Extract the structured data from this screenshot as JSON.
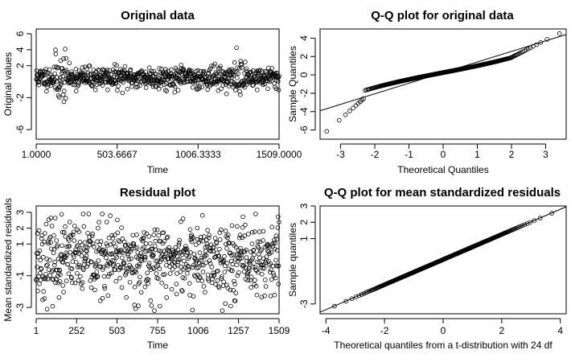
{
  "chart_data": [
    {
      "id": "p1",
      "type": "scatter",
      "title": "Original data",
      "xlabel": "Time",
      "ylabel": "Original values",
      "xlim": [
        1,
        1509
      ],
      "ylim": [
        -7.2,
        6.6
      ],
      "x_ticks": [
        1,
        503.6667,
        1006.3333,
        1509
      ],
      "x_tick_labels": [
        "1.0000",
        "503.6667",
        "1006.3333",
        "1509.0000"
      ],
      "y_ticks": [
        -6,
        -2,
        2,
        4,
        6
      ],
      "y_tick_labels": [
        "-6",
        "-2",
        "2",
        "4",
        "6"
      ],
      "series": [
        {
          "name": "original values",
          "n": 1509,
          "description": "time series centered near 0.5 with spread about ±1.5, bursts of larger values near t≈150 and t≈1250"
        }
      ]
    },
    {
      "id": "p2",
      "type": "scatter",
      "title": "Q-Q plot for original data",
      "xlabel": "Theoretical Quantiles",
      "ylabel": "Sample Quantiles",
      "xlim": [
        -3.6,
        3.6
      ],
      "ylim": [
        -7.0,
        5.0
      ],
      "x_ticks": [
        -3,
        -2,
        -1,
        0,
        1,
        2,
        3
      ],
      "x_tick_labels": [
        "-3",
        "-2",
        "-1",
        "0",
        "1",
        "2",
        "3"
      ],
      "y_ticks": [
        -6,
        -4,
        -2,
        0,
        2,
        4
      ],
      "y_tick_labels": [
        "-6",
        "-4",
        "-2",
        "0",
        "2",
        "4"
      ],
      "reference_line": {
        "x": [
          -3.6,
          3.6
        ],
        "y": [
          -3.9,
          4.4
        ]
      },
      "series": [
        {
          "name": "sample vs theoretical quantiles",
          "n": 1509,
          "description": "S-shaped curve with heavy tails, min about -6.6, max about 4.5"
        }
      ]
    },
    {
      "id": "p3",
      "type": "scatter",
      "title": "Residual plot",
      "xlabel": "Time",
      "ylabel": "Mean standardized residuals",
      "xlim": [
        1,
        1509
      ],
      "ylim": [
        -3.4,
        3.4
      ],
      "x_ticks": [
        1,
        252,
        503,
        755,
        1006,
        1257,
        1509
      ],
      "x_tick_labels": [
        "1",
        "252",
        "503",
        "755",
        "1006",
        "1257",
        "1509"
      ],
      "y_ticks": [
        -3,
        -1,
        1,
        2,
        3
      ],
      "y_tick_labels": [
        "-3",
        "-1",
        "1",
        "2",
        "3"
      ],
      "series": [
        {
          "name": "mean standardized residuals",
          "n": 1509,
          "description": "roughly uniform band between -3 and 3 centered near 0"
        }
      ]
    },
    {
      "id": "p4",
      "type": "scatter",
      "title": "Q-Q plot for mean standardized residuals",
      "xlabel": "Theoretical quantiles from a t-distribution with 24 df",
      "ylabel": "Sample quantiles",
      "xlim": [
        -4.2,
        4.2
      ],
      "ylim": [
        -3.6,
        3.0
      ],
      "x_ticks": [
        -4,
        -2,
        0,
        2,
        4
      ],
      "x_tick_labels": [
        "-4",
        "-2",
        "0",
        "2",
        "4"
      ],
      "y_ticks": [
        -3,
        1,
        2,
        3
      ],
      "y_tick_labels": [
        "-3",
        "1",
        "2",
        "3"
      ],
      "reference_line": {
        "x": [
          -4.2,
          4.2
        ],
        "y": [
          -3.5,
          2.95
        ]
      },
      "series": [
        {
          "name": "sample vs theoretical quantiles",
          "n": 1509,
          "description": "close to the reference line, min about -3.4, max about 2.8"
        }
      ]
    }
  ]
}
